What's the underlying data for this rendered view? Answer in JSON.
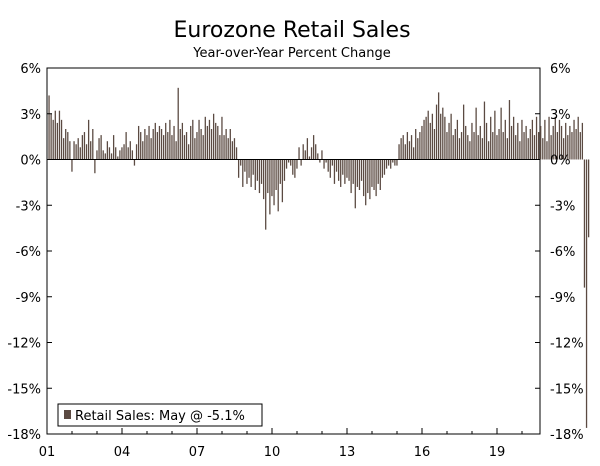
{
  "chart_data": {
    "type": "bar",
    "title": "Eurozone Retail Sales",
    "subtitle": "Year-over-Year Percent Change",
    "xlabel": "",
    "ylabel": "",
    "ylim": [
      -18,
      6
    ],
    "y_ticks": [
      "6%",
      "3%",
      "0%",
      "-3%",
      "-6%",
      "-9%",
      "-12%",
      "-15%",
      "-18%"
    ],
    "y_tick_values": [
      6,
      3,
      0,
      -3,
      -6,
      -9,
      -12,
      -15,
      -18
    ],
    "x_ticks": [
      "01",
      "04",
      "07",
      "10",
      "13",
      "16",
      "19"
    ],
    "grid": false,
    "legend": {
      "label": "Retail Sales: May @ -5.1%",
      "placement": "bottom-left"
    },
    "colors": {
      "bars": "#5b4a42",
      "axis": "#000000"
    },
    "series": [
      {
        "name": "Retail Sales",
        "start": "2001-01",
        "values": [
          4.2,
          3.0,
          2.6,
          3.2,
          2.4,
          3.2,
          2.6,
          1.4,
          2.0,
          1.8,
          1.2,
          -0.8,
          1.2,
          1.0,
          1.4,
          0.8,
          1.6,
          1.8,
          1.0,
          2.6,
          1.2,
          2.0,
          -0.9,
          0.6,
          1.4,
          1.6,
          0.6,
          0.4,
          1.2,
          0.8,
          0.4,
          1.6,
          0.8,
          0.2,
          0.6,
          0.8,
          1.0,
          1.8,
          0.8,
          1.2,
          0.6,
          -0.4,
          1.0,
          2.2,
          1.8,
          1.2,
          2.0,
          1.6,
          2.2,
          1.4,
          2.0,
          2.4,
          1.8,
          2.2,
          2.0,
          1.6,
          2.4,
          1.8,
          2.6,
          1.6,
          2.2,
          1.2,
          4.7,
          2.0,
          2.4,
          1.6,
          1.8,
          1.0,
          2.2,
          2.6,
          1.4,
          1.8,
          2.6,
          2.0,
          1.6,
          2.8,
          2.2,
          2.6,
          2.0,
          3.0,
          2.4,
          2.2,
          1.6,
          2.8,
          1.6,
          2.0,
          1.4,
          2.0,
          1.2,
          1.4,
          0.8,
          -1.2,
          -0.4,
          -1.8,
          -0.8,
          -1.6,
          -1.2,
          -1.8,
          -1.0,
          -2.0,
          -1.4,
          -2.2,
          -1.6,
          -2.6,
          -4.6,
          -2.2,
          -3.6,
          -2.4,
          -3.0,
          -2.0,
          -3.4,
          -1.6,
          -2.8,
          -1.4,
          -0.6,
          -0.2,
          -0.4,
          -1.0,
          -1.2,
          -0.6,
          0.8,
          -0.4,
          1.0,
          0.6,
          1.4,
          0.2,
          0.8,
          1.6,
          1.0,
          0.4,
          -0.2,
          0.6,
          -0.6,
          -0.2,
          -0.8,
          -1.2,
          -0.4,
          -1.6,
          -0.8,
          -1.4,
          -1.8,
          -1.0,
          -1.6,
          -1.2,
          -1.4,
          -2.2,
          -1.6,
          -3.2,
          -1.8,
          -2.0,
          -1.4,
          -2.4,
          -3.0,
          -2.2,
          -2.6,
          -1.8,
          -2.0,
          -2.4,
          -1.6,
          -2.0,
          -1.2,
          -1.0,
          -0.6,
          -0.4,
          -0.6,
          -0.2,
          -0.4,
          -0.4,
          1.0,
          1.4,
          1.6,
          1.0,
          1.8,
          1.2,
          1.6,
          0.8,
          2.0,
          1.4,
          1.8,
          2.2,
          2.6,
          2.8,
          3.2,
          2.4,
          3.0,
          2.0,
          3.6,
          4.4,
          3.0,
          3.4,
          2.8,
          1.8,
          2.4,
          3.0,
          1.6,
          2.0,
          2.6,
          1.4,
          1.8,
          3.6,
          2.2,
          1.6,
          1.2,
          2.4,
          1.8,
          3.4,
          1.6,
          2.2,
          1.4,
          3.8,
          2.4,
          1.2,
          2.8,
          1.8,
          3.2,
          1.6,
          2.0,
          3.4,
          1.8,
          2.6,
          1.4,
          3.9,
          2.2,
          2.8,
          1.6,
          2.4,
          1.2,
          2.6,
          1.8,
          2.2,
          1.4,
          2.0,
          2.6,
          1.6,
          2.8,
          1.8,
          2.2,
          1.4,
          2.6,
          1.2,
          2.8,
          1.6,
          2.2,
          2.8,
          1.8,
          2.6,
          2.2,
          1.4,
          2.4,
          1.6,
          2.2,
          1.8,
          2.6,
          2.0,
          2.8,
          1.8,
          2.4,
          -8.4,
          -17.6,
          -5.1
        ]
      }
    ]
  }
}
